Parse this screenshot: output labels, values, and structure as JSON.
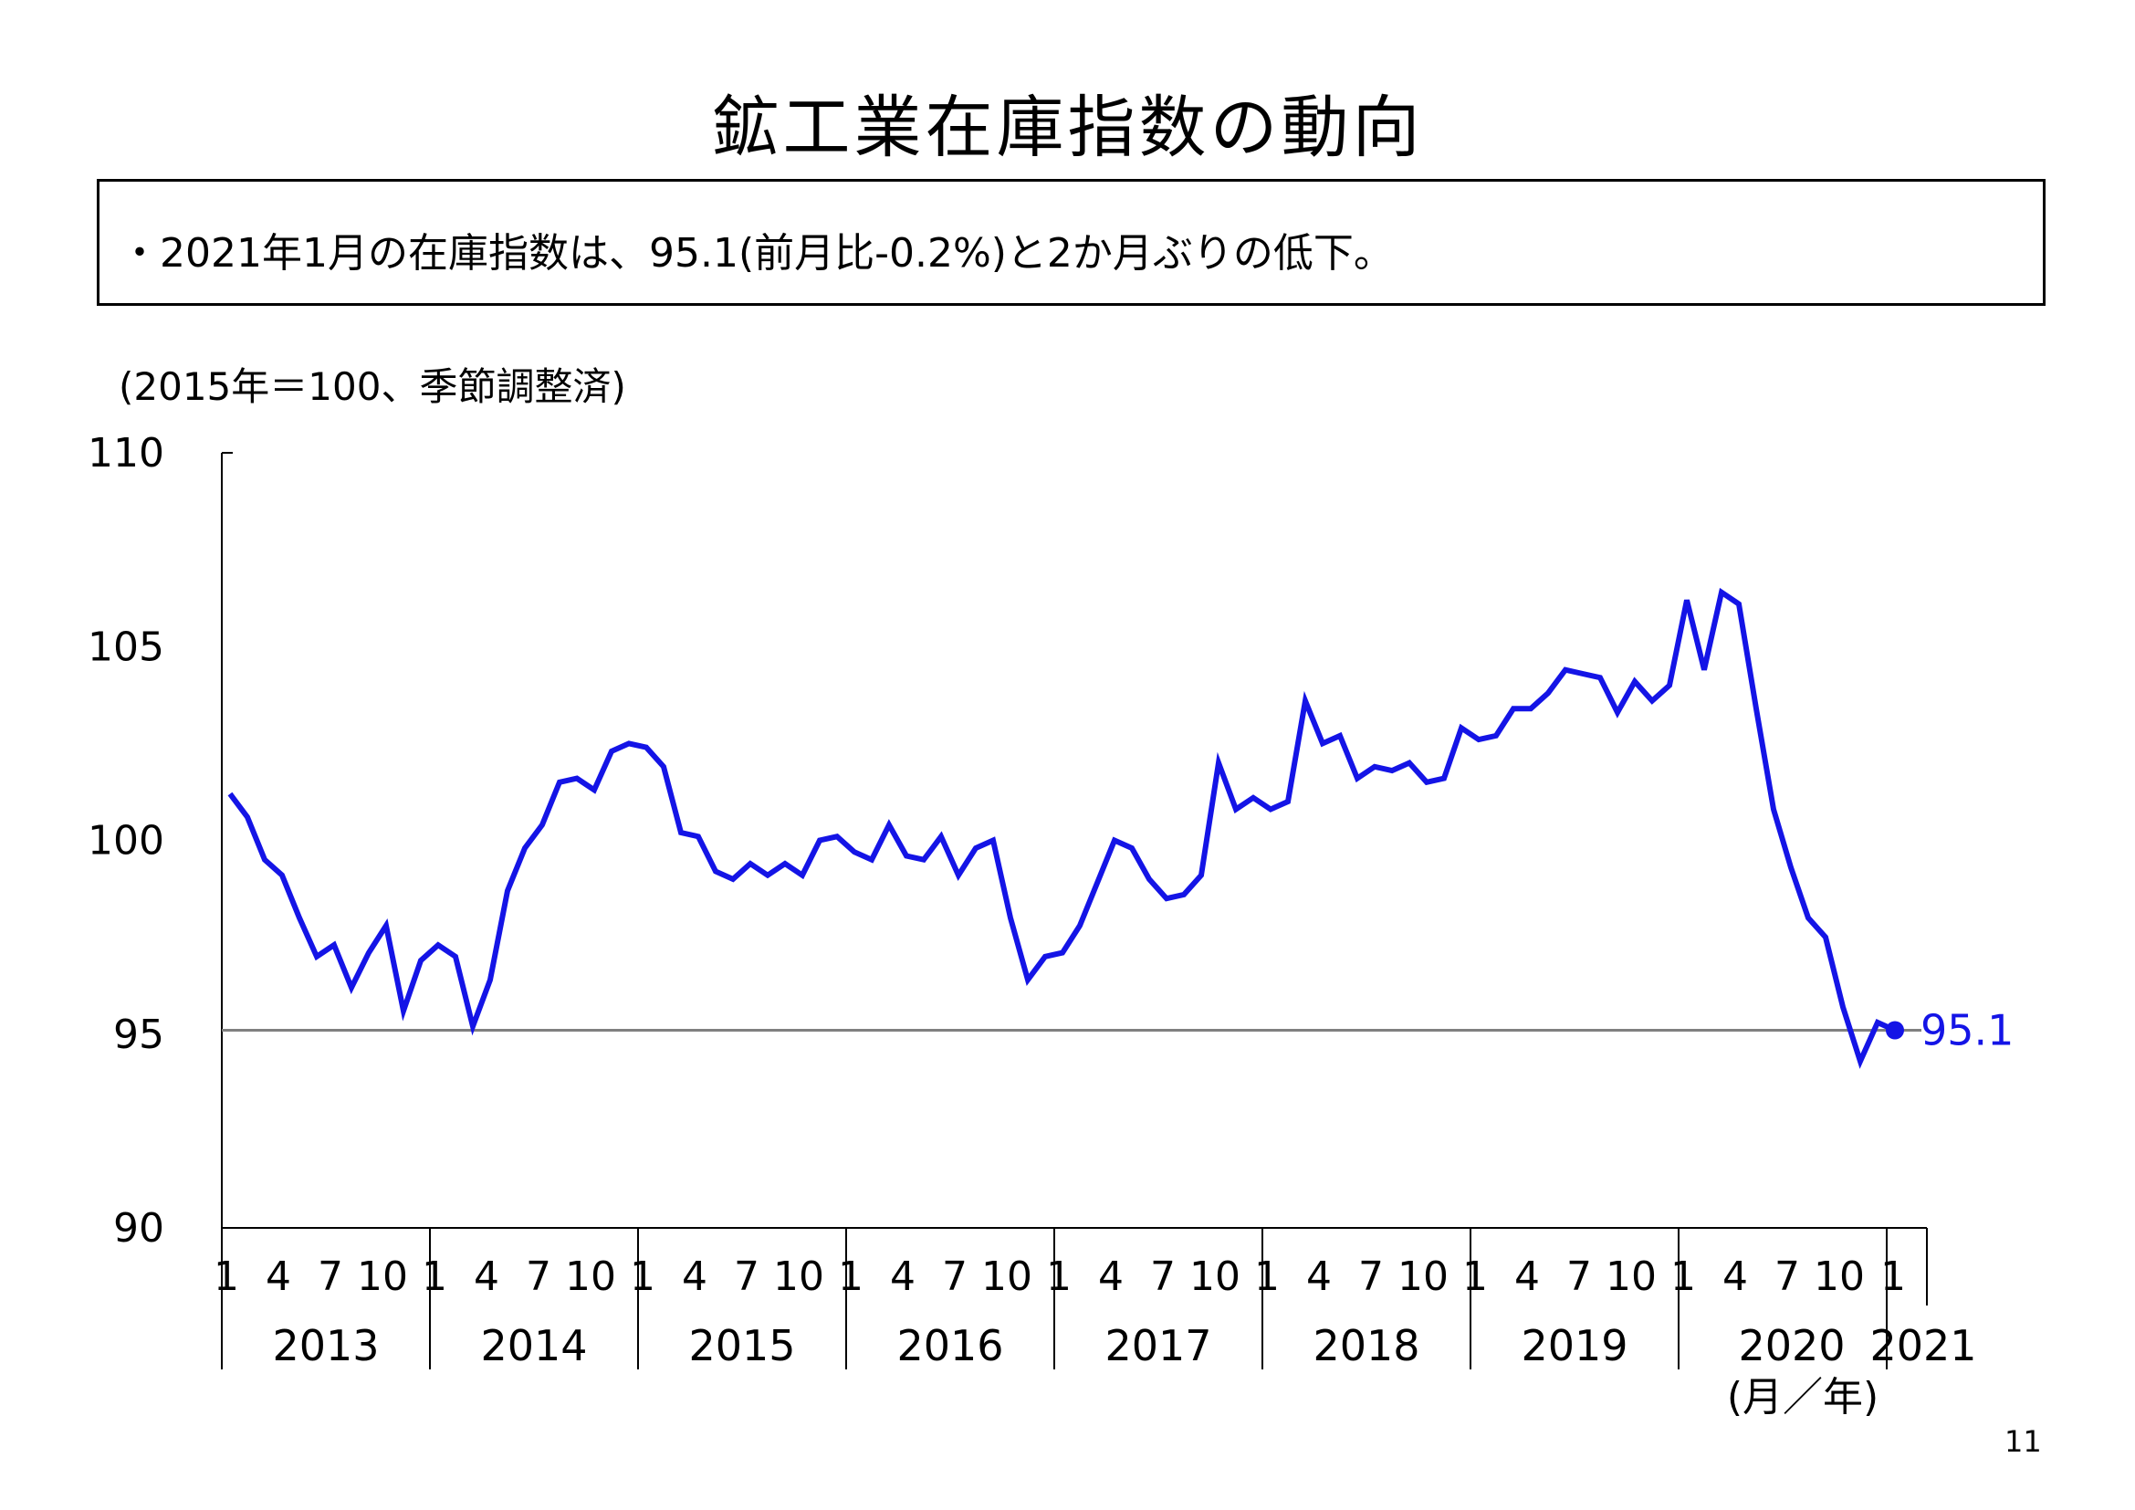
{
  "page": {
    "title": "鉱工業在庫指数の動向",
    "summary": "・2021年1月の在庫指数は、95.1(前月比-0.2%)と2か月ぶりの低下。",
    "unit_label": "(2015年＝100、季節調整済)",
    "page_number": "11"
  },
  "chart_data": {
    "type": "line",
    "title": "",
    "ylim": [
      90,
      110
    ],
    "y_ticks": [
      "90",
      "95",
      "100",
      "105",
      "110"
    ],
    "month_ticks": [
      "1",
      "4",
      "7",
      "10"
    ],
    "years": [
      "2013",
      "2014",
      "2015",
      "2016",
      "2017",
      "2018",
      "2019",
      "2020",
      "2021"
    ],
    "final_month_tick": "1",
    "xlabel": "(月／年)",
    "reference_value": 95.1,
    "last_value_label": "95.1",
    "colors": {
      "line": "#1414e6",
      "reference_line": "#808080",
      "axis": "#000000"
    },
    "series": [
      {
        "values": [
          101.2,
          100.6,
          99.5,
          99.1,
          98.0,
          97.0,
          97.3,
          96.2,
          97.1,
          97.8,
          95.6,
          96.9,
          97.3,
          97.0,
          95.2,
          96.4,
          98.7,
          99.8,
          100.4,
          101.5,
          101.6,
          101.3,
          102.3,
          102.5,
          102.4,
          101.9,
          100.2,
          100.1,
          99.2,
          99.0,
          99.4,
          99.1,
          99.4,
          99.1,
          100.0,
          100.1,
          99.7,
          99.5,
          100.4,
          99.6,
          99.5,
          100.1,
          99.1,
          99.8,
          100.0,
          98.0,
          96.4,
          97.0,
          97.1,
          97.8,
          98.9,
          100.0,
          99.8,
          99.0,
          98.5,
          98.6,
          99.1,
          102.0,
          100.8,
          101.1,
          100.8,
          101.0,
          103.6,
          102.5,
          102.7,
          101.6,
          101.9,
          101.8,
          102.0,
          101.5,
          101.6,
          102.9,
          102.6,
          102.7,
          103.4,
          103.4,
          103.8,
          104.4,
          104.3,
          104.2,
          103.3,
          104.1,
          103.6,
          104.0,
          106.2,
          104.4,
          106.4,
          106.1,
          103.4,
          100.8,
          99.3,
          98.0,
          97.5,
          95.7,
          94.3,
          95.3,
          95.1
        ]
      }
    ]
  }
}
